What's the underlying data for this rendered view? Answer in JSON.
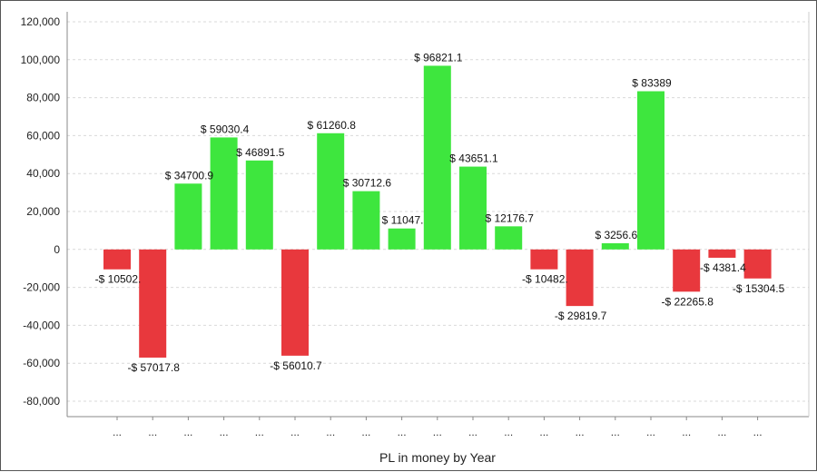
{
  "chart_data": {
    "type": "bar",
    "title": "",
    "xlabel": "PL in money by Year",
    "ylabel": "",
    "ylim": [
      -80000,
      120000
    ],
    "yticks": [
      -80000,
      -60000,
      -40000,
      -20000,
      0,
      20000,
      40000,
      60000,
      80000,
      100000,
      120000
    ],
    "ytick_labels": [
      "-80,000",
      "-60,000",
      "-40,000",
      "-20,000",
      "0",
      "20,000",
      "40,000",
      "60,000",
      "80,000",
      "100,000",
      "120,000"
    ],
    "grid": true,
    "categories": [
      "...",
      "...",
      "...",
      "...",
      "...",
      "...",
      "...",
      "...",
      "...",
      "...",
      "...",
      "...",
      "...",
      "...",
      "...",
      "...",
      "...",
      "...",
      "..."
    ],
    "values": [
      -10502,
      -57017.8,
      34700.9,
      59030.4,
      46891.5,
      -56010.7,
      61260.8,
      30712.6,
      11047,
      96821.1,
      43651.1,
      12176.7,
      -10482,
      -29819.7,
      3256.6,
      83389,
      -22265.8,
      -4381.4,
      -15304.5
    ],
    "data_labels": [
      "-$ 10502.",
      "-$ 57017.8",
      "$ 34700.9",
      "$ 59030.4",
      "$ 46891.5",
      "-$ 56010.7",
      "$ 61260.8",
      "$ 30712.6",
      "$ 11047.",
      "$ 96821.1",
      "$ 43651.1",
      "$ 12176.7",
      "-$ 10482.",
      "-$ 29819.7",
      "$ 3256.6",
      "$ 83389",
      "-$ 22265.8",
      "-$ 4381.4",
      "-$ 15304.5"
    ],
    "colors": {
      "positive": "#3ee63e",
      "negative": "#e8383d",
      "grid": "#d9d9d9",
      "axis": "#888888"
    }
  }
}
